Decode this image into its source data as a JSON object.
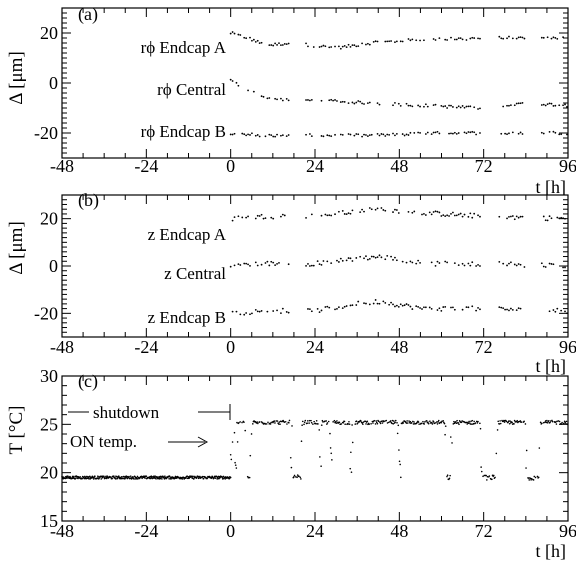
{
  "chart_data": [
    {
      "type": "scatter",
      "panel_label": "(a)",
      "ylabel": "Δ [μm]",
      "xlabel": "t [h]",
      "xlim": [
        -48,
        96
      ],
      "ylim": [
        -30,
        30
      ],
      "xticks": [
        -48,
        -24,
        0,
        24,
        48,
        72,
        96
      ],
      "yticks": [
        -20,
        0,
        20
      ],
      "series": [
        {
          "name": "rϕ Endcap A",
          "base": 19,
          "trend": [
            [
              0,
              20
            ],
            [
              5,
              18
            ],
            [
              10,
              15
            ],
            [
              17,
              16
            ],
            [
              30,
              14
            ],
            [
              40,
              16
            ],
            [
              50,
              17
            ],
            [
              72,
              18
            ],
            [
              85,
              18
            ],
            [
              96,
              18
            ]
          ],
          "noise": 0.6
        },
        {
          "name": "rϕ Central",
          "base": 0,
          "trend": [
            [
              0,
              1
            ],
            [
              5,
              -3
            ],
            [
              10,
              -6
            ],
            [
              17,
              -7
            ],
            [
              24,
              -7
            ],
            [
              40,
              -8
            ],
            [
              55,
              -9
            ],
            [
              70,
              -10
            ],
            [
              85,
              -8
            ],
            [
              96,
              -9
            ]
          ],
          "noise": 0.6
        },
        {
          "name": "rϕ Endcap B",
          "base": -20,
          "trend": [
            [
              0,
              -20
            ],
            [
              10,
              -21
            ],
            [
              24,
              -21
            ],
            [
              40,
              -21
            ],
            [
              60,
              -20
            ],
            [
              72,
              -20
            ],
            [
              96,
              -20
            ]
          ],
          "noise": 0.6
        }
      ],
      "gaps_h": [
        [
          17,
          21
        ],
        [
          71,
          76
        ],
        [
          84,
          88
        ]
      ],
      "xrange_h": [
        0,
        96
      ]
    },
    {
      "type": "scatter",
      "panel_label": "(b)",
      "ylabel": "Δ [μm]",
      "xlabel": "t [h]",
      "xlim": [
        -48,
        96
      ],
      "ylim": [
        -30,
        30
      ],
      "xticks": [
        -48,
        -24,
        0,
        24,
        48,
        72,
        96
      ],
      "yticks": [
        -20,
        0,
        20
      ],
      "series": [
        {
          "name": "z Endcap A",
          "base": 20,
          "trend": [
            [
              0,
              20
            ],
            [
              10,
              21
            ],
            [
              24,
              21
            ],
            [
              36,
              23
            ],
            [
              42,
              24
            ],
            [
              60,
              22
            ],
            [
              72,
              21
            ],
            [
              96,
              20
            ]
          ],
          "noise": 1.0
        },
        {
          "name": "z Central",
          "base": 0,
          "trend": [
            [
              0,
              0
            ],
            [
              10,
              1
            ],
            [
              24,
              1
            ],
            [
              36,
              3
            ],
            [
              42,
              4
            ],
            [
              55,
              1
            ],
            [
              72,
              1
            ],
            [
              96,
              0
            ]
          ],
          "noise": 1.0
        },
        {
          "name": "z Endcap B",
          "base": -20,
          "trend": [
            [
              0,
              -20
            ],
            [
              10,
              -19
            ],
            [
              24,
              -19
            ],
            [
              36,
              -16
            ],
            [
              42,
              -15
            ],
            [
              55,
              -18
            ],
            [
              72,
              -18
            ],
            [
              96,
              -19
            ]
          ],
          "noise": 1.0
        }
      ],
      "gaps_h": [
        [
          17,
          21
        ],
        [
          71,
          76
        ],
        [
          84,
          88
        ]
      ],
      "xrange_h": [
        0,
        96
      ]
    },
    {
      "type": "scatter",
      "panel_label": "(c)",
      "ylabel": "T [°C]",
      "xlabel": "t [h]",
      "xlim": [
        -48,
        96
      ],
      "ylim": [
        15,
        30
      ],
      "xticks": [
        -48,
        -24,
        0,
        24,
        48,
        72,
        96
      ],
      "yticks": [
        15,
        20,
        25,
        30
      ],
      "levels": {
        "off": 19.5,
        "on": 25.2
      },
      "shutdown_range_h": [
        -48,
        0
      ],
      "annotations": {
        "shutdown": "shutdown",
        "on_temp": "ON temp."
      }
    }
  ]
}
